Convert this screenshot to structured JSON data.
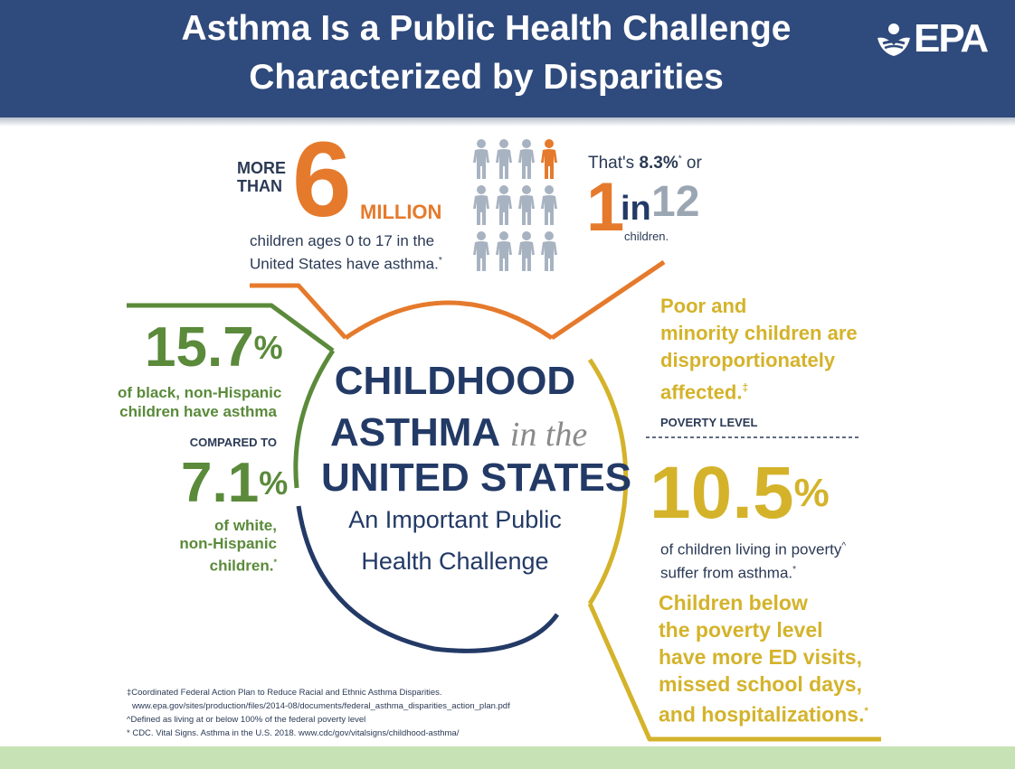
{
  "header": {
    "title_line1": "Asthma Is a Public Health Challenge",
    "title_line2": "Characterized by Disparities",
    "logo": "EPA"
  },
  "stats": {
    "more_than_line1": "MORE",
    "more_than_line2": "THAN",
    "big_number": "6",
    "million": "MILLION",
    "children_line1": "children ages 0 to 17 in the",
    "children_line2": "United States have asthma.",
    "children_mark": "*",
    "thats_prefix": "That's ",
    "thats_percent": "8.3%",
    "thats_mark": "*",
    "thats_suffix": " or",
    "ratio_one": "1",
    "ratio_in": "in",
    "ratio_twelve": "12",
    "ratio_children": "children.",
    "figure_grid": {
      "rows": 3,
      "cols": 4,
      "highlighted": 1,
      "color_default": "#a8b3c1",
      "color_highlight": "#e57a2c",
      "icon": "child-figure-icon"
    }
  },
  "center": {
    "line1": "CHILDHOOD",
    "line2a": "ASTHMA ",
    "line2b": "in the",
    "line3": "UNITED STATES",
    "line4": "An Important Public",
    "line5": "Health Challenge"
  },
  "left": {
    "stat1": "15.7",
    "stat1_pct": "%",
    "stat1_desc1": "of black, non-Hispanic",
    "stat1_desc2": "children have asthma",
    "compared": "COMPARED TO",
    "stat2": "7.1",
    "stat2_pct": "%",
    "stat2_desc1": "of white,",
    "stat2_desc2": "non-Hispanic",
    "stat2_desc3": "children.",
    "stat2_mark": "*"
  },
  "right": {
    "poor1": "Poor and",
    "poor2": "minority children are",
    "poor3": "disproportionately",
    "poor4": "affected.",
    "poor_mark": "‡",
    "poverty_label": "POVERTY LEVEL",
    "stat": "10.5",
    "stat_pct": "%",
    "desc1": "of children living in poverty",
    "desc1_mark": "^",
    "desc2": "suffer from asthma.",
    "desc2_mark": "*",
    "below1": "Children below",
    "below2": "the poverty level",
    "below3": "have more ED visits,",
    "below4": "missed school days,",
    "below5": "and hospitalizations.",
    "below_mark": "*"
  },
  "footnotes": {
    "line1": "‡Coordinated Federal Action Plan to Reduce Racial and Ethnic Asthma Disparities.",
    "line2": "www.epa.gov/sites/production/files/2014-08/documents/federal_asthma_disparities_action_plan.pdf",
    "line3": "^Defined as living at or below 100% of the federal poverty level",
    "line4": "* CDC. Vital Signs. Asthma in the U.S. 2018. www.cdc/gov/vitalsigns/childhood-asthma/"
  },
  "colors": {
    "header": "#2f4a7c",
    "orange": "#e57a2c",
    "green": "#5a8a3a",
    "gold": "#d4b32b",
    "navy": "#233a66",
    "footer_band": "#c7e2b4"
  }
}
